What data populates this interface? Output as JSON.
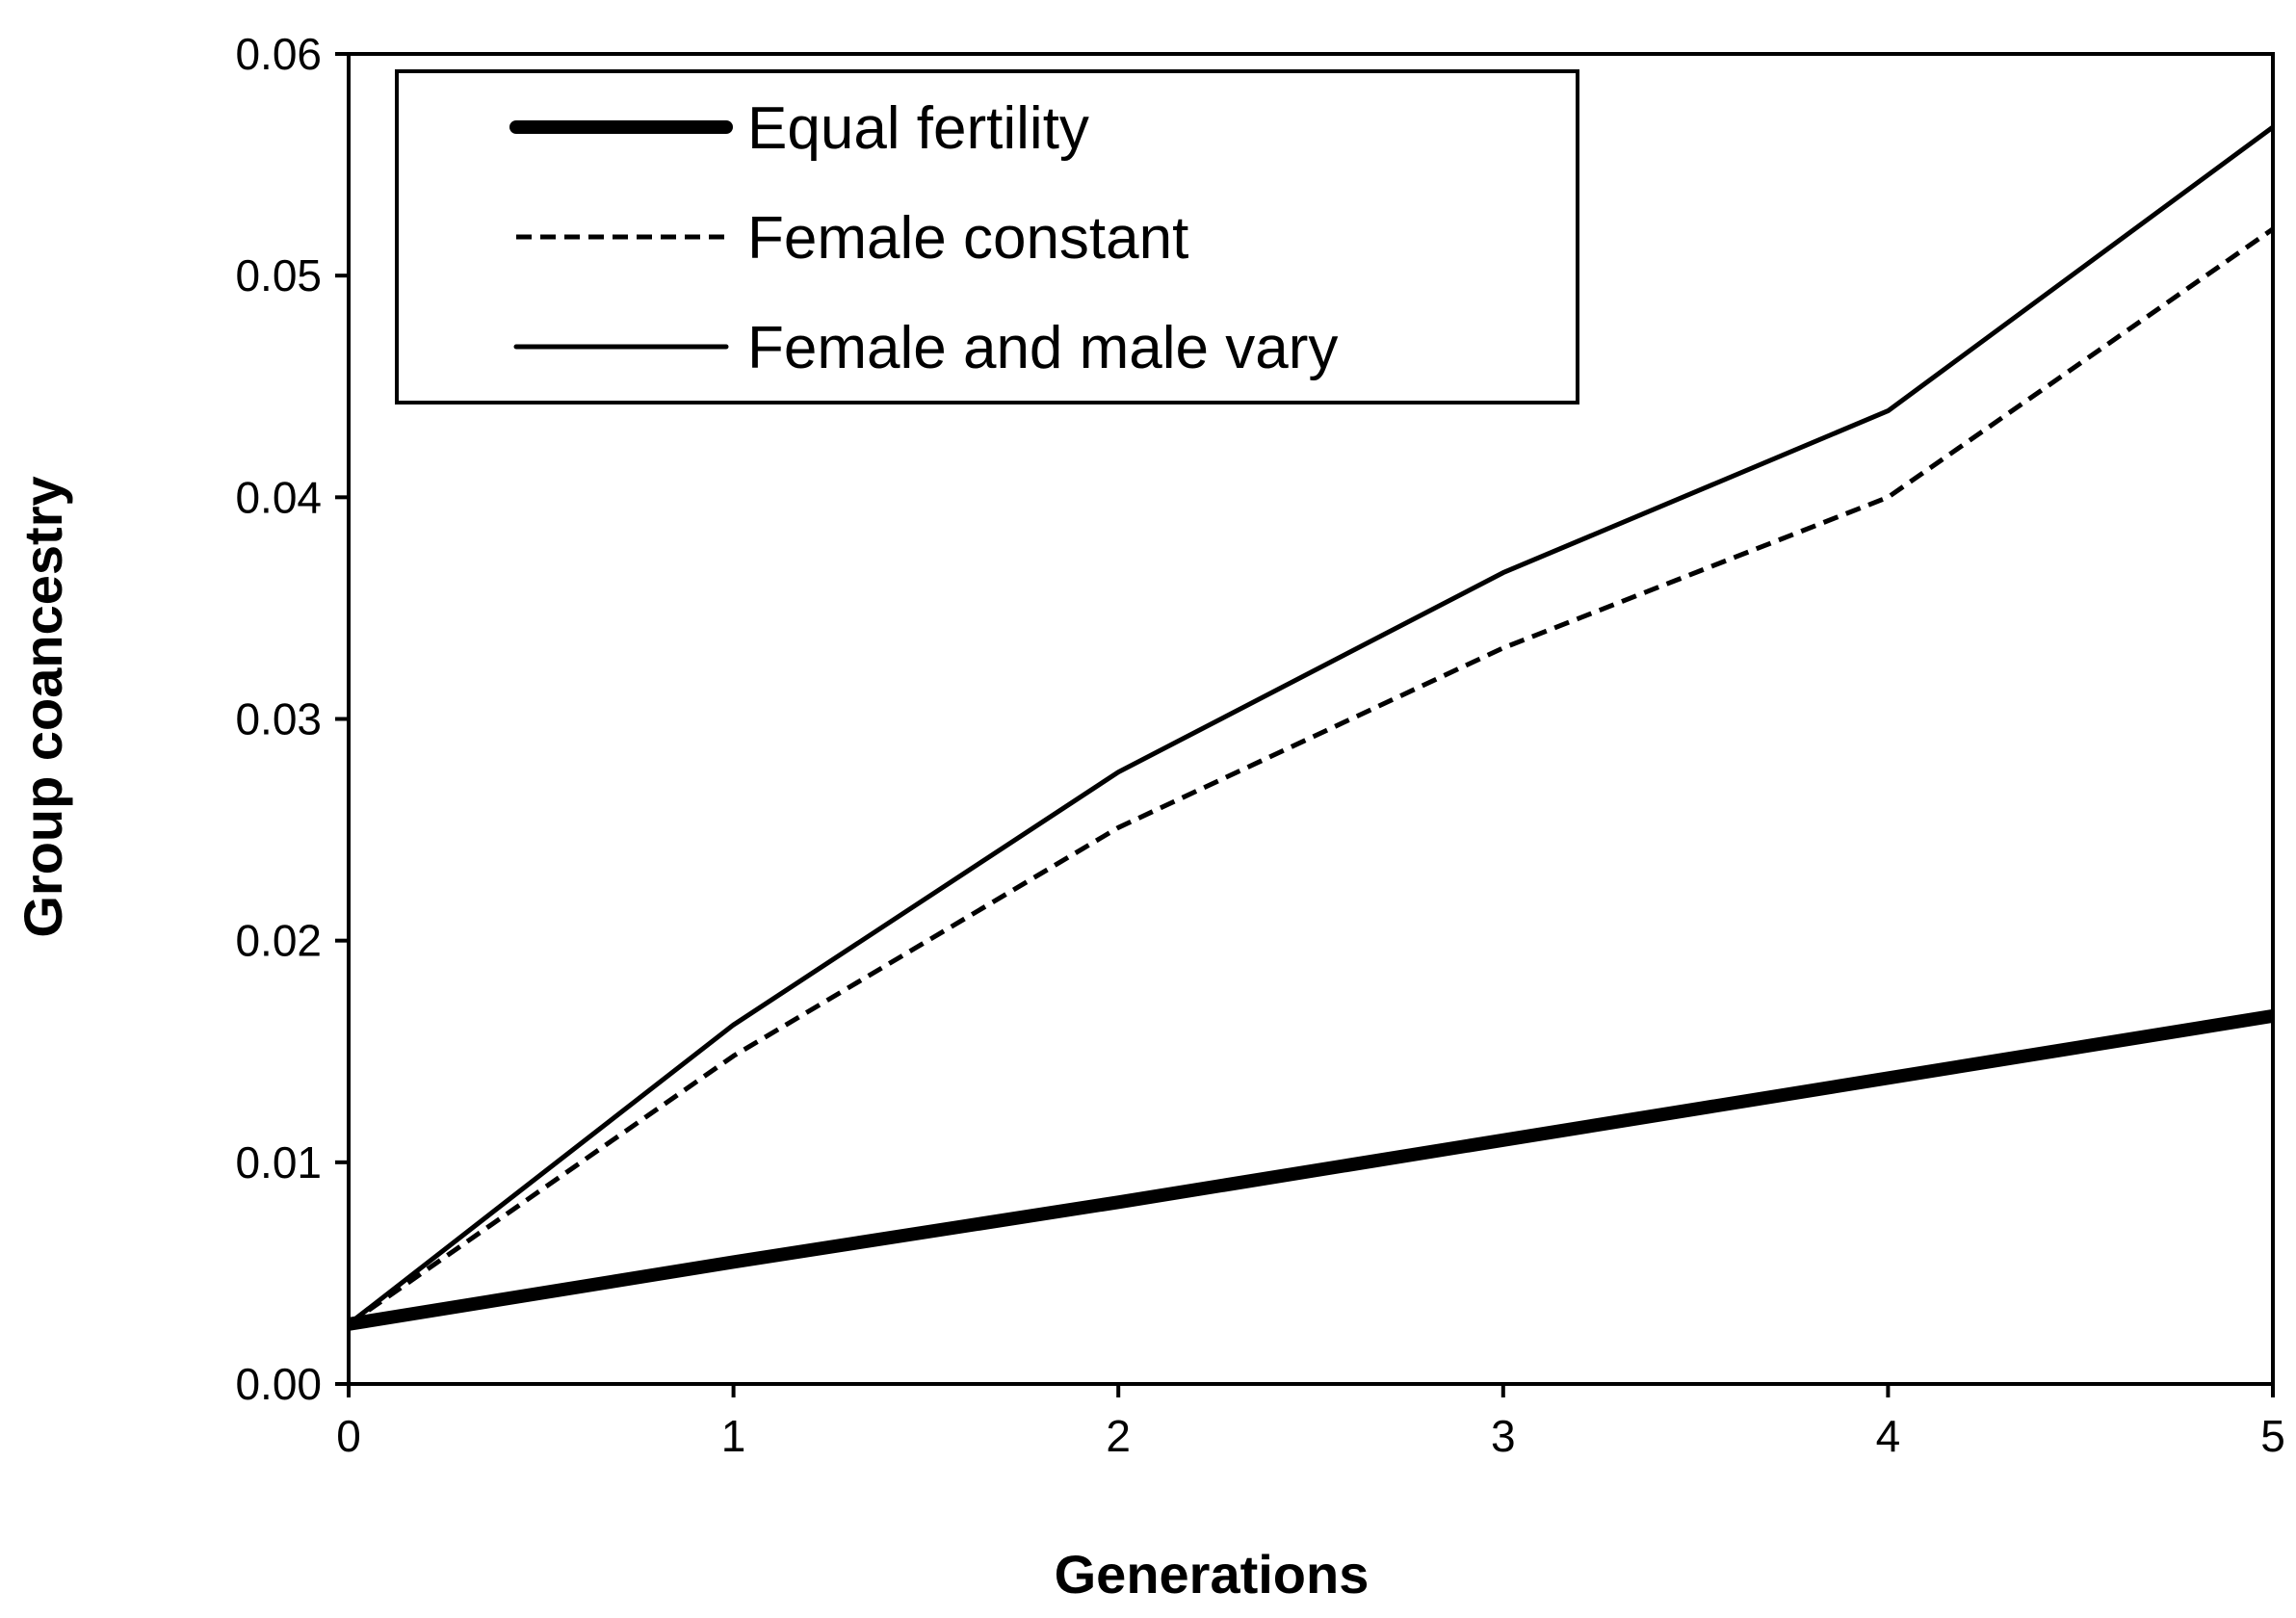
{
  "chart_data": {
    "type": "line",
    "title": "",
    "xlabel": "Generations",
    "ylabel": "Group coancestry",
    "x": [
      0,
      1,
      2,
      3,
      4,
      5
    ],
    "x_tick_labels": [
      "0",
      "1",
      "2",
      "3",
      "4",
      "5"
    ],
    "y_tick_labels": [
      "0.00",
      "0.01",
      "0.02",
      "0.03",
      "0.04",
      "0.05",
      "0.06"
    ],
    "xlim": [
      0,
      5
    ],
    "ylim": [
      0,
      0.06
    ],
    "grid": false,
    "legend_position": "top-left",
    "series": [
      {
        "name": "Equal fertility",
        "style": "thick-solid",
        "color": "#000000",
        "values": [
          0.0027,
          0.0055,
          0.0082,
          0.011,
          0.0138,
          0.0166
        ]
      },
      {
        "name": "Female constant",
        "style": "dashed",
        "color": "#000000",
        "values": [
          0.0027,
          0.0148,
          0.0251,
          0.0332,
          0.04,
          0.0521
        ]
      },
      {
        "name": "Female and male vary",
        "style": "solid",
        "color": "#000000",
        "values": [
          0.0027,
          0.0162,
          0.0276,
          0.0366,
          0.0439,
          0.0567
        ]
      }
    ]
  }
}
